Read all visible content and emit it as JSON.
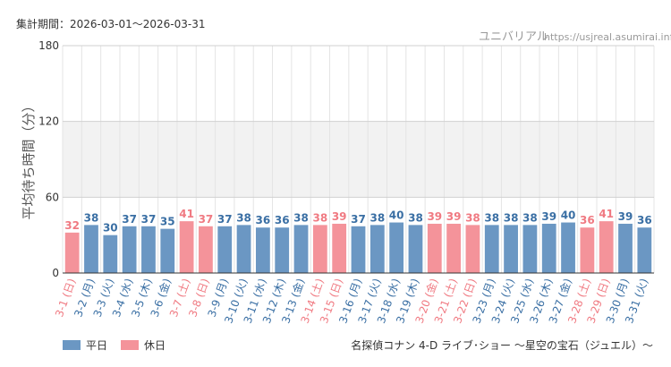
{
  "header": {
    "period_label": "集計期間：2026-03-01～2026-03-31",
    "site_name": "ユニバリアル",
    "site_url": "https://usjreal.asumirai.info"
  },
  "chart_data": {
    "type": "bar",
    "ylabel": "平均待ち時間（分）",
    "ylim": [
      0,
      180
    ],
    "yticks": [
      0,
      60,
      120,
      180
    ],
    "shaded_band": [
      60,
      120
    ],
    "categories": [
      "3-1 (日)",
      "3-2 (月)",
      "3-3 (火)",
      "3-4 (水)",
      "3-5 (木)",
      "3-6 (金)",
      "3-7 (土)",
      "3-8 (日)",
      "3-9 (月)",
      "3-10 (火)",
      "3-11 (水)",
      "3-12 (木)",
      "3-13 (金)",
      "3-14 (土)",
      "3-15 (日)",
      "3-16 (月)",
      "3-17 (火)",
      "3-18 (水)",
      "3-19 (木)",
      "3-20 (金)",
      "3-21 (土)",
      "3-22 (日)",
      "3-23 (月)",
      "3-24 (火)",
      "3-25 (水)",
      "3-26 (木)",
      "3-27 (金)",
      "3-28 (土)",
      "3-29 (日)",
      "3-30 (月)",
      "3-31 (火)"
    ],
    "values": [
      32,
      38,
      30,
      37,
      37,
      35,
      41,
      37,
      37,
      38,
      36,
      36,
      38,
      38,
      39,
      37,
      38,
      40,
      38,
      39,
      39,
      38,
      38,
      38,
      38,
      39,
      40,
      36,
      41,
      39,
      36
    ],
    "day_type": [
      "holiday",
      "weekday",
      "weekday",
      "weekday",
      "weekday",
      "weekday",
      "holiday",
      "holiday",
      "weekday",
      "weekday",
      "weekday",
      "weekday",
      "weekday",
      "holiday",
      "holiday",
      "weekday",
      "weekday",
      "weekday",
      "weekday",
      "holiday",
      "holiday",
      "holiday",
      "weekday",
      "weekday",
      "weekday",
      "weekday",
      "weekday",
      "holiday",
      "holiday",
      "weekday",
      "weekday"
    ],
    "legend": [
      {
        "key": "weekday",
        "label": "平日",
        "color": "#6b97c3",
        "text_color": "#3a6fa4"
      },
      {
        "key": "holiday",
        "label": "休日",
        "color": "#f4939a",
        "text_color": "#f07a82"
      }
    ],
    "legend_position": "bottom-left",
    "grid": true,
    "caption": "名探偵コナン 4-D ライブ･ショー ～星空の宝石（ジュエル）～"
  }
}
